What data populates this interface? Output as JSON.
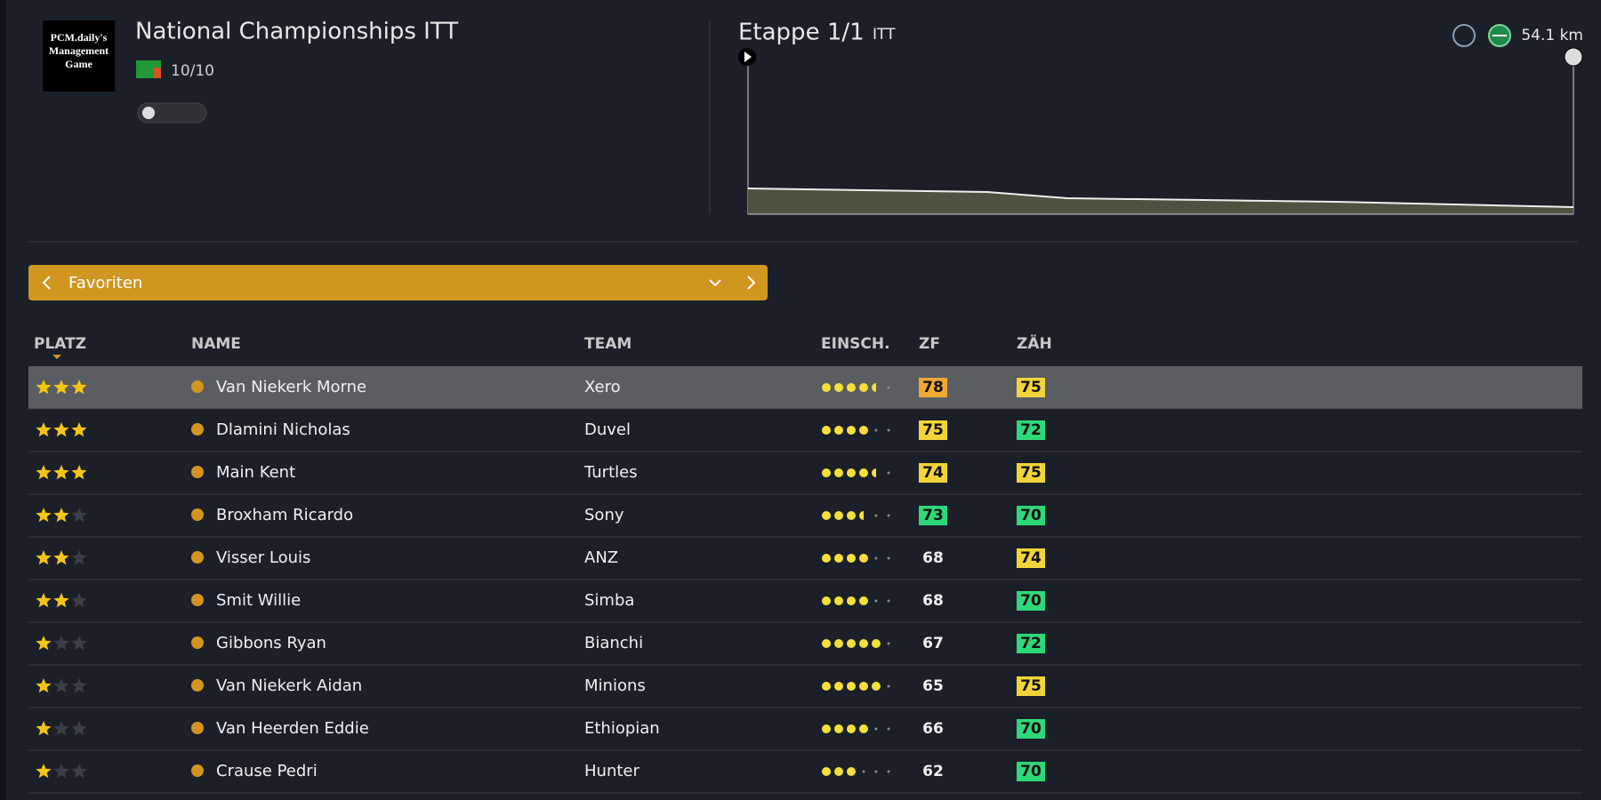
{
  "header": {
    "logo_text": "PCM.daily's Management Game",
    "title": "National Championships ITT",
    "rating": "10/10"
  },
  "stage": {
    "title": "Etappe 1/1",
    "type": "ITT",
    "distance": "54.1 km"
  },
  "dropdown": {
    "label": "Favoriten"
  },
  "table": {
    "columns": [
      "PLATZ",
      "NAME",
      "TEAM",
      "EINSCH.",
      "ZF",
      "ZÄH"
    ],
    "rows": [
      {
        "stars": 3,
        "name": "Van Niekerk Morne",
        "team": "Xero",
        "form": 4.5,
        "zf": "78",
        "zah": "75"
      },
      {
        "stars": 3,
        "name": "Dlamini Nicholas",
        "team": "Duvel",
        "form": 4,
        "zf": "75",
        "zah": "72"
      },
      {
        "stars": 3,
        "name": "Main Kent",
        "team": "Turtles",
        "form": 4.5,
        "zf": "74",
        "zah": "75"
      },
      {
        "stars": 2,
        "name": "Broxham Ricardo",
        "team": "Sony",
        "form": 3.5,
        "zf": "73",
        "zah": "70"
      },
      {
        "stars": 2,
        "name": "Visser Louis",
        "team": "ANZ",
        "form": 4,
        "zf": "68",
        "zah": "74"
      },
      {
        "stars": 2,
        "name": "Smit Willie",
        "team": "Simba",
        "form": 4,
        "zf": "68",
        "zah": "70"
      },
      {
        "stars": 1,
        "name": "Gibbons Ryan",
        "team": "Bianchi",
        "form": 5,
        "zf": "67",
        "zah": "72"
      },
      {
        "stars": 1,
        "name": "Van Niekerk Aidan",
        "team": "Minions",
        "form": 5,
        "zf": "65",
        "zah": "75"
      },
      {
        "stars": 1,
        "name": "Van Heerden Eddie",
        "team": "Ethiopian",
        "form": 4,
        "zf": "66",
        "zah": "70"
      },
      {
        "stars": 1,
        "name": "Crause Pedri",
        "team": "Hunter",
        "form": 3,
        "zf": "62",
        "zah": "70"
      }
    ]
  }
}
